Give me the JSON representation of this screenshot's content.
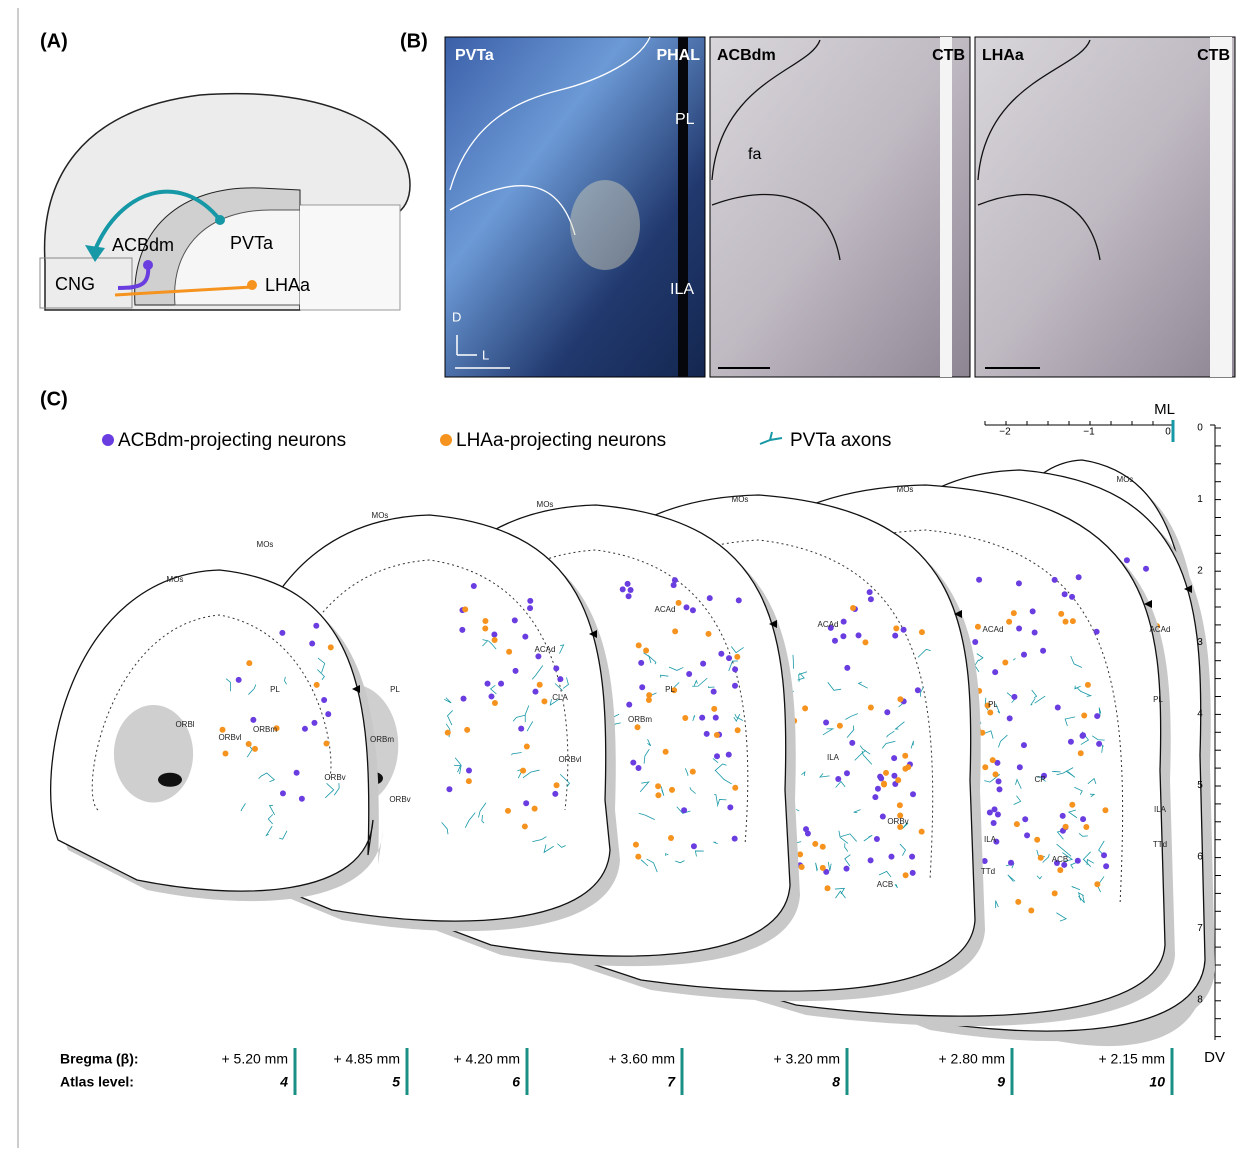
{
  "panel_a": {
    "label": "(A)",
    "regions": [
      "ACBdm",
      "PVTa",
      "CNG",
      "LHAa"
    ]
  },
  "panel_b": {
    "label": "(B)",
    "images": [
      {
        "left": "PVTa",
        "right": "PHAL",
        "labels": [
          "PL",
          "ILA"
        ],
        "axes": [
          "D",
          "L"
        ]
      },
      {
        "left": "ACBdm",
        "right": "CTB",
        "labels": [
          "fa"
        ]
      },
      {
        "left": "LHAa",
        "right": "CTB",
        "labels": []
      }
    ]
  },
  "panel_c": {
    "label": "(C)",
    "legend": [
      "ACBdm-projecting neurons",
      "LHAa-projecting neurons",
      "PVTa axons"
    ],
    "ml_scale": {
      "title": "ML",
      "ticks": [
        "−2",
        "−1",
        "0"
      ]
    },
    "dv_scale": {
      "title": "DV",
      "ticks": [
        "0",
        "1",
        "2",
        "3",
        "4",
        "5",
        "6",
        "7",
        "8"
      ]
    },
    "regions": [
      "MOs",
      "MOs",
      "MOs",
      "MOs",
      "MOs",
      "MOs",
      "MOs",
      "PL",
      "ORBl",
      "ORBvl",
      "ORBm",
      "ORBv",
      "ORBv",
      "ORBm",
      "PL",
      "ACAd",
      "CLA",
      "ORBvl",
      "ORBm",
      "PL",
      "ACAd",
      "ACAd",
      "ILA",
      "ACAd",
      "PL",
      "ILA",
      "TTd",
      "ACB",
      "ORBv",
      "ACAd",
      "PL",
      "ILA",
      "TTd",
      "CP",
      "ACB"
    ],
    "bregma": {
      "label": "Bregma (β):",
      "values": [
        "+ 5.20 mm",
        "+ 4.85 mm",
        "+ 4.20 mm",
        "+ 3.60 mm",
        "+ 3.20 mm",
        "+ 2.80 mm",
        "+ 2.15 mm"
      ]
    },
    "atlas": {
      "label": "Atlas level:",
      "values": [
        "4",
        "5",
        "6",
        "7",
        "8",
        "9",
        "10"
      ]
    }
  }
}
